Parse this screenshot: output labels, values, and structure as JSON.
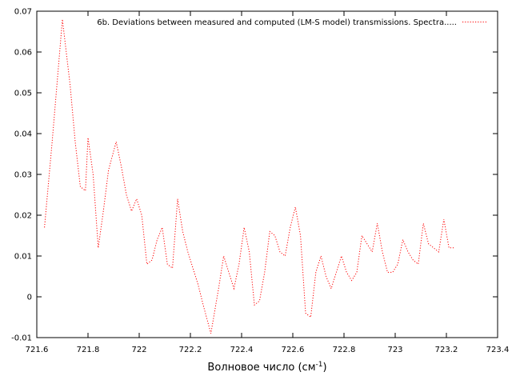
{
  "chart_data": {
    "type": "line",
    "title": "",
    "xlabel": {
      "main": "Волновое число (см",
      "sup": "-1",
      "close": ")"
    },
    "ylabel": "",
    "xlim": [
      721.6,
      723.4
    ],
    "ylim": [
      -0.01,
      0.07
    ],
    "xticks": [
      721.6,
      721.8,
      722,
      722.2,
      722.4,
      722.6,
      722.8,
      723,
      723.2,
      723.4
    ],
    "xtick_labels": [
      "721.6",
      "721.8",
      "722",
      "722.2",
      "722.4",
      "722.6",
      "722.8",
      "723",
      "723.2",
      "723.4"
    ],
    "yticks": [
      -0.01,
      0,
      0.01,
      0.02,
      0.03,
      0.04,
      0.05,
      0.06,
      0.07
    ],
    "ytick_labels": [
      "-0.01",
      "0",
      "0.01",
      "0.02",
      "0.03",
      "0.04",
      "0.05",
      "0.06",
      "0.07"
    ],
    "grid": false,
    "legend_position": "top-right",
    "series": [
      {
        "name": "6b. Deviations between measured and computed (LM-S model) transmissions. Spectra.....",
        "color": "#ff0000",
        "style": "dotted",
        "x": [
          721.63,
          721.66,
          721.7,
          721.73,
          721.75,
          721.77,
          721.79,
          721.8,
          721.82,
          721.84,
          721.86,
          721.88,
          721.91,
          721.93,
          721.95,
          721.97,
          721.99,
          722.01,
          722.03,
          722.05,
          722.07,
          722.09,
          722.11,
          722.13,
          722.15,
          722.17,
          722.19,
          722.21,
          722.23,
          722.25,
          722.28,
          722.31,
          722.33,
          722.35,
          722.37,
          722.39,
          722.41,
          722.43,
          722.45,
          722.47,
          722.49,
          722.51,
          722.53,
          722.55,
          722.57,
          722.59,
          722.61,
          722.63,
          722.65,
          722.67,
          722.69,
          722.71,
          722.73,
          722.75,
          722.77,
          722.79,
          722.81,
          722.83,
          722.85,
          722.87,
          722.89,
          722.91,
          722.93,
          722.95,
          722.97,
          722.99,
          723.01,
          723.03,
          723.05,
          723.07,
          723.09,
          723.11,
          723.13,
          723.15,
          723.17,
          723.19,
          723.21,
          723.23
        ],
        "y": [
          0.017,
          0.038,
          0.068,
          0.052,
          0.038,
          0.027,
          0.026,
          0.039,
          0.03,
          0.012,
          0.021,
          0.031,
          0.038,
          0.032,
          0.025,
          0.021,
          0.024,
          0.02,
          0.008,
          0.009,
          0.014,
          0.017,
          0.008,
          0.007,
          0.024,
          0.016,
          0.011,
          0.007,
          0.003,
          -0.002,
          -0.009,
          0.002,
          0.01,
          0.006,
          0.002,
          0.008,
          0.017,
          0.011,
          -0.002,
          -0.001,
          0.006,
          0.016,
          0.015,
          0.011,
          0.01,
          0.017,
          0.022,
          0.015,
          -0.004,
          -0.005,
          0.006,
          0.01,
          0.005,
          0.002,
          0.006,
          0.01,
          0.006,
          0.004,
          0.006,
          0.015,
          0.013,
          0.011,
          0.018,
          0.011,
          0.006,
          0.006,
          0.008,
          0.014,
          0.011,
          0.009,
          0.008,
          0.018,
          0.013,
          0.012,
          0.011,
          0.019,
          0.012,
          0.012
        ]
      }
    ]
  }
}
